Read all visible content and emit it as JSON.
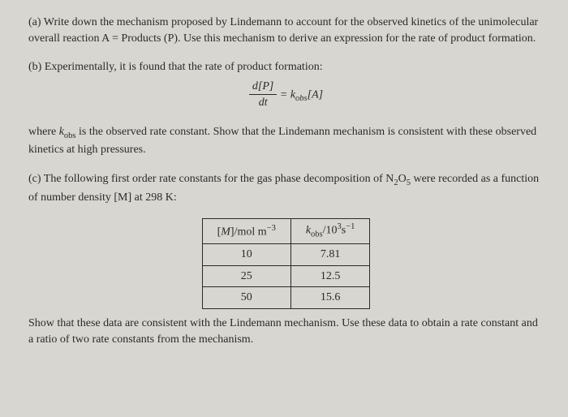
{
  "partA": "(a) Write down the mechanism proposed by Lindemann to account for the observed kinetics of the unimolecular overall reaction A = Products (P). Use this mechanism to derive an expression for the rate of product formation.",
  "partB_intro": "(b) Experimentally, it is found that the rate of product formation:",
  "equation": {
    "num": "d[P]",
    "den": "dt",
    "rhs_k": "k",
    "rhs_sub": "obs",
    "rhs_tail": "[A]"
  },
  "partB_followup_1": "where ",
  "partB_kobs_k": "k",
  "partB_kobs_sub": "obs",
  "partB_followup_2": " is the observed rate constant. Show that the Lindemann mechanism is consistent with these observed kinetics at high pressures.",
  "partC_line1": "(c) The following first order rate constants for the gas phase decomposition of N",
  "partC_sub1": "2",
  "partC_mid": "O",
  "partC_sub2": "5",
  "partC_line2": " were recorded as a function of number density [M] at 298 K:",
  "table": {
    "header1_pre": "[",
    "header1_M": "M",
    "header1_post": "]/mol m",
    "header1_sup": "−3",
    "header2_k": "k",
    "header2_sub": "obs",
    "header2_post": "/10",
    "header2_sup1": "3",
    "header2_post2": "s",
    "header2_sup2": "−1",
    "rows": [
      [
        "10",
        "7.81"
      ],
      [
        "25",
        "12.5"
      ],
      [
        "50",
        "15.6"
      ]
    ]
  },
  "final": "Show that these data are consistent with the Lindemann mechanism. Use these data to obtain a rate constant and a ratio of two rate constants from the mechanism."
}
